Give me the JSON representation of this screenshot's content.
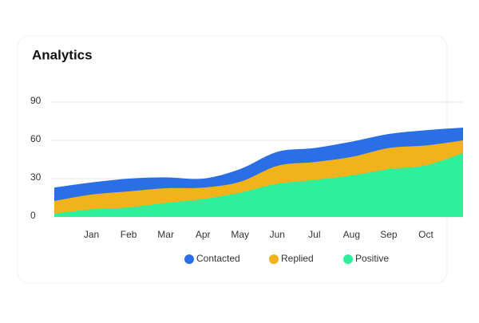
{
  "chart_data": {
    "type": "area",
    "title": "Analytics",
    "categories": [
      null,
      "Jan",
      "Feb",
      "Mar",
      "Apr",
      "May",
      "Jun",
      "Jul",
      "Aug",
      "Sep",
      "Oct",
      null
    ],
    "series": [
      {
        "name": "Contacted",
        "color": "#2a6fe8",
        "values": [
          23,
          27,
          30,
          31,
          30,
          37.5,
          51,
          54,
          59,
          65,
          68,
          70
        ]
      },
      {
        "name": "Replied",
        "color": "#f2b21b",
        "values": [
          12.5,
          17.5,
          20,
          22.5,
          23,
          27.5,
          40,
          43,
          47,
          54,
          56,
          60
        ]
      },
      {
        "name": "Positive",
        "color": "#2ff09a",
        "values": [
          2.5,
          6,
          7.5,
          11,
          14,
          19,
          26,
          29,
          32.5,
          37.5,
          40.5,
          50
        ]
      }
    ],
    "ylim": [
      0,
      90
    ],
    "yticks": [
      0,
      30,
      60,
      90
    ],
    "grid": true
  }
}
